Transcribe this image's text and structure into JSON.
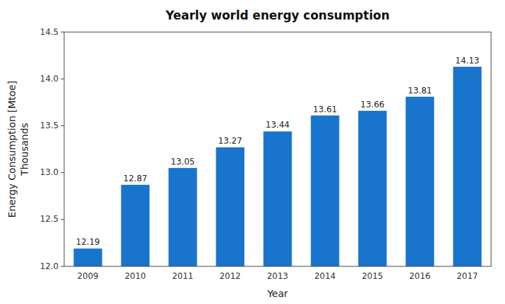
{
  "chart_data": {
    "type": "bar",
    "title": "Yearly world energy consumption",
    "xlabel": "Year",
    "ylabel": [
      "Energy Consumption [Mtoe]",
      "Thousands"
    ],
    "categories": [
      "2009",
      "2010",
      "2011",
      "2012",
      "2013",
      "2014",
      "2015",
      "2016",
      "2017"
    ],
    "values": [
      12.19,
      12.87,
      13.05,
      13.27,
      13.44,
      13.61,
      13.66,
      13.81,
      14.13
    ],
    "color": "#1874CD",
    "ylim": [
      12.0,
      14.5
    ],
    "yticks": [
      {
        "value": 12.0,
        "label": "12.0"
      },
      12.5,
      {
        "value": 13.0,
        "label": "13.0"
      },
      13.5,
      {
        "value": 14.0,
        "label": "14.0"
      },
      14.5
    ],
    "grid": false,
    "data_labels": true
  }
}
